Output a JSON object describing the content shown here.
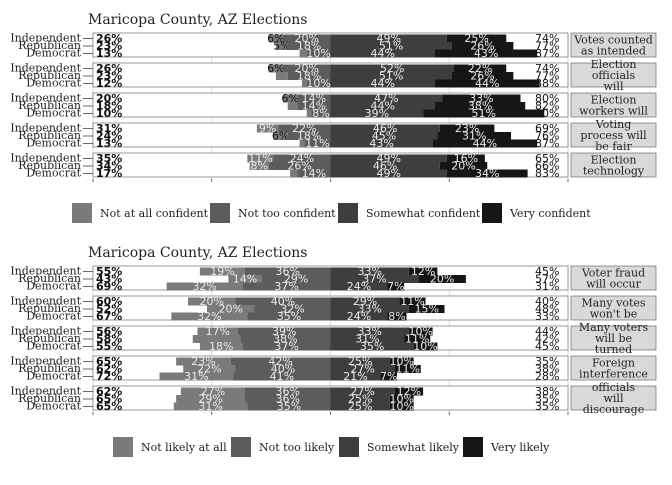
{
  "chart_data": [
    {
      "type": "bar",
      "title": "Maricopa County, AZ Elections",
      "orientation": "horizontal-diverging-stacked",
      "groups": [
        "Independent",
        "Republican",
        "Democrat"
      ],
      "categories": [
        "Not at all confident",
        "Not too confident",
        "Somewhat confident",
        "Very confident"
      ],
      "colors": [
        "#7a7a7a",
        "#5c5c5c",
        "#3e3e3e",
        "#161616"
      ],
      "xlim": [
        -100,
        100
      ],
      "facets": [
        {
          "label": "Votes counted as intended",
          "rows": [
            {
              "group": "Independent",
              "left_total": "26%",
              "right_total": "74%",
              "values": [
                6,
                20,
                49,
                25
              ],
              "labels": [
                "6%",
                "20%",
                "49%",
                "25%"
              ]
            },
            {
              "group": "Republican",
              "left_total": "23%",
              "right_total": "77%",
              "values": [
                5,
                18,
                51,
                26
              ],
              "labels": [
                "5%",
                "18%",
                "51%",
                "26%"
              ]
            },
            {
              "group": "Democrat",
              "left_total": "13%",
              "right_total": "87%",
              "values": [
                3,
                10,
                44,
                43
              ],
              "labels": [
                "",
                "10%",
                "44%",
                "43%"
              ]
            }
          ]
        },
        {
          "label": "Election officials will",
          "rows": [
            {
              "group": "Independent",
              "left_total": "26%",
              "right_total": "74%",
              "values": [
                6,
                20,
                52,
                22
              ],
              "labels": [
                "6%",
                "20%",
                "52%",
                "22%"
              ]
            },
            {
              "group": "Republican",
              "left_total": "23%",
              "right_total": "77%",
              "values": [
                5,
                18,
                51,
                26
              ],
              "labels": [
                "",
                "18%",
                "51%",
                "26%"
              ]
            },
            {
              "group": "Democrat",
              "left_total": "12%",
              "right_total": "88%",
              "values": [
                2,
                10,
                44,
                44
              ],
              "labels": [
                "",
                "10%",
                "44%",
                "44%"
              ]
            }
          ]
        },
        {
          "label": "Election workers will",
          "rows": [
            {
              "group": "Independent",
              "left_total": "20%",
              "right_total": "80%",
              "values": [
                6,
                14,
                47,
                33
              ],
              "labels": [
                "6%",
                "14%",
                "47%",
                "33%"
              ]
            },
            {
              "group": "Republican",
              "left_total": "18%",
              "right_total": "82%",
              "values": [
                4,
                14,
                44,
                38
              ],
              "labels": [
                "",
                "14%",
                "44%",
                "38%"
              ]
            },
            {
              "group": "Democrat",
              "left_total": "10%",
              "right_total": "90%",
              "values": [
                2,
                8,
                39,
                51
              ],
              "labels": [
                "",
                "8%",
                "39%",
                "51%"
              ]
            }
          ]
        },
        {
          "label": "Voting process will be fair",
          "rows": [
            {
              "group": "Independent",
              "left_total": "31%",
              "right_total": "69%",
              "values": [
                9,
                22,
                46,
                23
              ],
              "labels": [
                "9%",
                "22%",
                "46%",
                "23%"
              ]
            },
            {
              "group": "Republican",
              "left_total": "24%",
              "right_total": "76%",
              "values": [
                6,
                18,
                45,
                31
              ],
              "labels": [
                "6%",
                "18%",
                "45%",
                "31%"
              ]
            },
            {
              "group": "Democrat",
              "left_total": "13%",
              "right_total": "87%",
              "values": [
                2,
                11,
                43,
                44
              ],
              "labels": [
                "",
                "11%",
                "43%",
                "44%"
              ]
            }
          ]
        },
        {
          "label": "Election technology",
          "rows": [
            {
              "group": "Independent",
              "left_total": "35%",
              "right_total": "65%",
              "values": [
                11,
                24,
                49,
                16
              ],
              "labels": [
                "11%",
                "24%",
                "49%",
                "16%"
              ]
            },
            {
              "group": "Republican",
              "left_total": "34%",
              "right_total": "66%",
              "values": [
                8,
                26,
                46,
                20
              ],
              "labels": [
                "8%",
                "26%",
                "46%",
                "20%"
              ]
            },
            {
              "group": "Democrat",
              "left_total": "17%",
              "right_total": "83%",
              "values": [
                3,
                14,
                49,
                34
              ],
              "labels": [
                "",
                "14%",
                "49%",
                "34%"
              ]
            }
          ]
        }
      ]
    },
    {
      "type": "bar",
      "title": "Maricopa County, AZ Elections",
      "orientation": "horizontal-diverging-stacked",
      "groups": [
        "Independent",
        "Republican",
        "Democrat"
      ],
      "categories": [
        "Not likely at all",
        "Not too likely",
        "Somewhat likely",
        "Very likely"
      ],
      "colors": [
        "#7a7a7a",
        "#5c5c5c",
        "#3e3e3e",
        "#161616"
      ],
      "xlim": [
        -100,
        100
      ],
      "facets": [
        {
          "label": "Voter fraud will occur",
          "rows": [
            {
              "group": "Independent",
              "left_total": "55%",
              "right_total": "45%",
              "values": [
                19,
                36,
                33,
                12
              ],
              "labels": [
                "19%",
                "36%",
                "33%",
                "12%"
              ]
            },
            {
              "group": "Republican",
              "left_total": "43%",
              "right_total": "57%",
              "values": [
                14,
                29,
                37,
                20
              ],
              "labels": [
                "14%",
                "29%",
                "37%",
                "20%"
              ]
            },
            {
              "group": "Democrat",
              "left_total": "69%",
              "right_total": "31%",
              "values": [
                32,
                37,
                24,
                7
              ],
              "labels": [
                "32%",
                "37%",
                "24%",
                "7%"
              ]
            }
          ]
        },
        {
          "label": "Many votes won't be",
          "rows": [
            {
              "group": "Independent",
              "left_total": "60%",
              "right_total": "40%",
              "values": [
                20,
                40,
                29,
                11
              ],
              "labels": [
                "20%",
                "40%",
                "29%",
                "11%"
              ]
            },
            {
              "group": "Republican",
              "left_total": "52%",
              "right_total": "48%",
              "values": [
                20,
                32,
                33,
                15
              ],
              "labels": [
                "20%",
                "32%",
                "33%",
                "15%"
              ]
            },
            {
              "group": "Democrat",
              "left_total": "67%",
              "right_total": "33%",
              "values": [
                32,
                35,
                24,
                8
              ],
              "labels": [
                "32%",
                "35%",
                "24%",
                "8%"
              ]
            }
          ]
        },
        {
          "label": "Many voters will be turned",
          "rows": [
            {
              "group": "Independent",
              "left_total": "56%",
              "right_total": "44%",
              "values": [
                17,
                39,
                33,
                10
              ],
              "labels": [
                "17%",
                "39%",
                "33%",
                "10%"
              ]
            },
            {
              "group": "Republican",
              "left_total": "58%",
              "right_total": "42%",
              "values": [
                20,
                38,
                31,
                11
              ],
              "labels": [
                "",
                "38%",
                "31%",
                "11%"
              ]
            },
            {
              "group": "Democrat",
              "left_total": "55%",
              "right_total": "45%",
              "values": [
                18,
                37,
                35,
                10
              ],
              "labels": [
                "18%",
                "37%",
                "35%",
                "10%"
              ]
            }
          ]
        },
        {
          "label": "Foreign interference",
          "rows": [
            {
              "group": "Independent",
              "left_total": "65%",
              "right_total": "35%",
              "values": [
                23,
                42,
                25,
                10
              ],
              "labels": [
                "23%",
                "42%",
                "25%",
                "10%"
              ]
            },
            {
              "group": "Republican",
              "left_total": "62%",
              "right_total": "38%",
              "values": [
                22,
                40,
                27,
                11
              ],
              "labels": [
                "22%",
                "40%",
                "27%",
                "11%"
              ]
            },
            {
              "group": "Democrat",
              "left_total": "72%",
              "right_total": "28%",
              "values": [
                31,
                41,
                21,
                7
              ],
              "labels": [
                "31%",
                "41%",
                "21%",
                "7%"
              ]
            }
          ]
        },
        {
          "label": "officials will discourage",
          "rows": [
            {
              "group": "Independent",
              "left_total": "62%",
              "right_total": "38%",
              "values": [
                27,
                36,
                27,
                12
              ],
              "labels": [
                "27%",
                "36%",
                "27%",
                "12%"
              ]
            },
            {
              "group": "Republican",
              "left_total": "65%",
              "right_total": "35%",
              "values": [
                29,
                36,
                25,
                10
              ],
              "labels": [
                "29%",
                "36%",
                "25%",
                "10%"
              ]
            },
            {
              "group": "Democrat",
              "left_total": "65%",
              "right_total": "35%",
              "values": [
                31,
                35,
                25,
                10
              ],
              "labels": [
                "31%",
                "35%",
                "25%",
                "10%"
              ]
            }
          ]
        }
      ]
    }
  ]
}
